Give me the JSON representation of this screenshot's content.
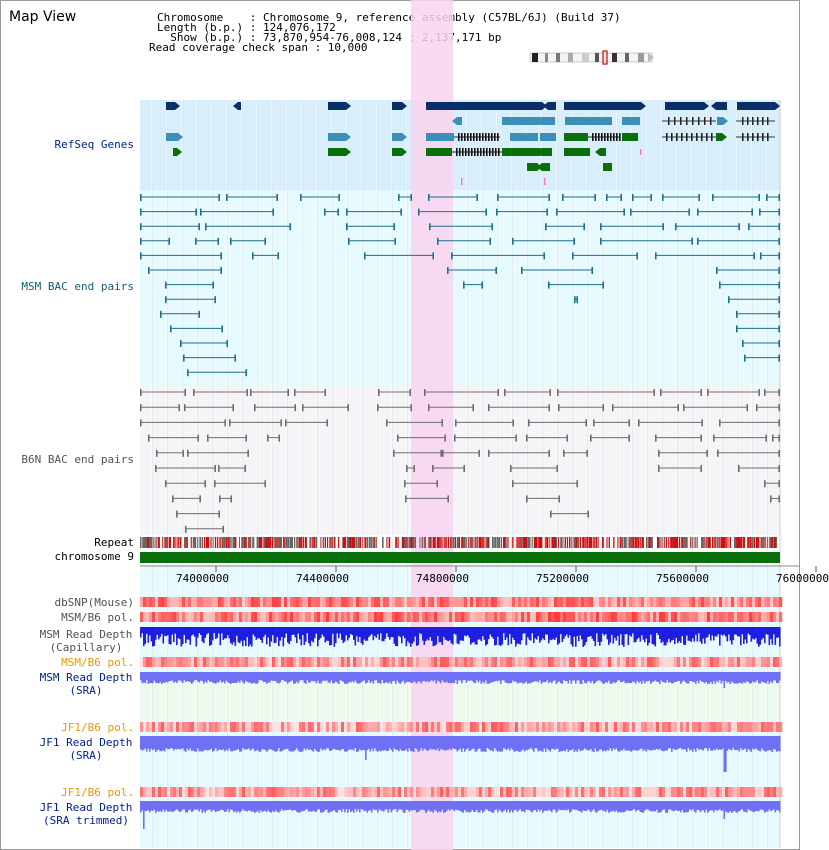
{
  "view_title": "Map View",
  "info": {
    "line1": "Chromosome    : Chromosome 9, reference assembly (C57BL/6J) (Build 37)",
    "line2": "Length (b.p.) : 124,076,172",
    "line3": "  Show (b.p.) : 73,870,954-76,008,124 : 2,137,171 bp",
    "line4": "Read coverage check span : 10,000"
  },
  "tracks": {
    "refseq": "RefSeq Genes",
    "msm_bac": "MSM BAC end pairs",
    "b6n_bac": "B6N BAC end pairs",
    "repeat": "Repeat",
    "chromosome": "chromosome 9",
    "dbsnp": "dbSNP(Mouse)",
    "msm_b6_pol_1": "MSM/B6 pol.",
    "msm_read_depth_cap_1": "MSM Read Depth",
    "msm_read_depth_cap_2": "(Capillary)",
    "msm_b6_pol_2": "MSM/B6 pol.",
    "msm_read_depth_sra_1": "MSM Read Depth",
    "msm_read_depth_sra_2": "(SRA)",
    "jf1_b6_pol_1": "JF1/B6 pol.",
    "jf1_read_depth_sra_1": "JF1 Read Depth",
    "jf1_read_depth_sra_2": "(SRA)",
    "jf1_b6_pol_2": "JF1/B6 pol.",
    "jf1_read_depth_trim_1": "JF1 Read Depth",
    "jf1_read_depth_trim_2": "(SRA trimmed)"
  },
  "ruler": {
    "range_bp": [
      73870954,
      76008124
    ],
    "ticks": [
      "74000000",
      "74400000",
      "74800000",
      "75200000",
      "75600000",
      "76000000"
    ]
  },
  "highlight_range_bp": [
    74770000,
    74910000
  ],
  "colors": {
    "refseq_bg": "#d8eefa",
    "msm_bg": "#e6faff",
    "b6n_bg": "#f5f5f8",
    "highlight": "#f8d4f0",
    "refseq_dark": "#0a2f66",
    "refseq_mid": "#3d8fb7",
    "refseq_green": "#0a6e0a",
    "msm_bac": "#1e6f8d",
    "b6n_bac": "#6e6e6e",
    "depth_capillary": "#1e1ee0",
    "depth_sra": "#7070f4",
    "chromosome": "#0a6e0a",
    "label_navy": "#00238a",
    "label_teal": "#1a5a78",
    "label_gray": "#505060",
    "label_orange": "#e89800"
  }
}
